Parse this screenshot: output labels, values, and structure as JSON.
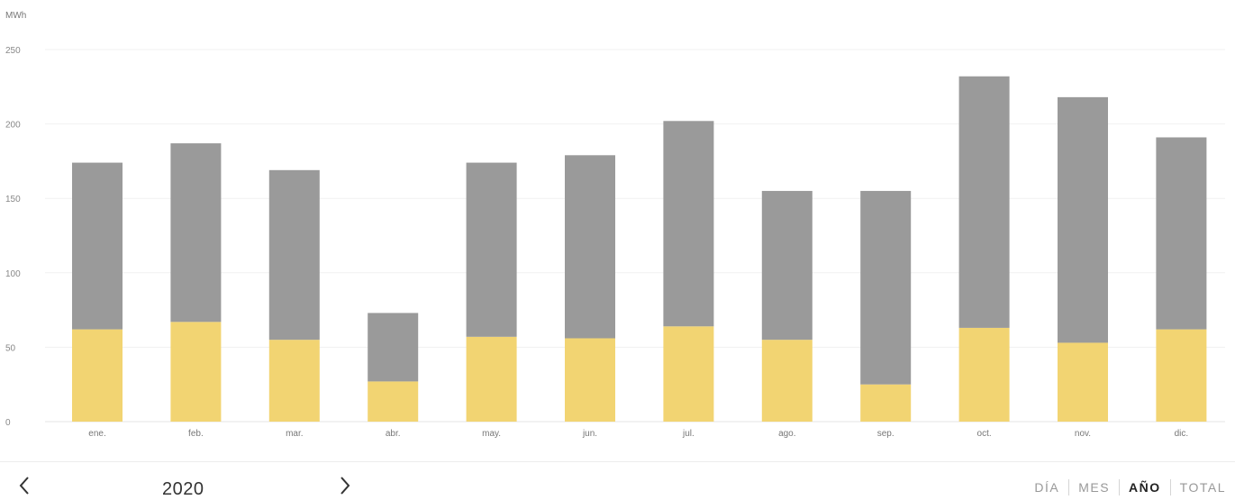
{
  "chart_data": {
    "type": "bar",
    "stacked": true,
    "unit_label": "MWh",
    "ylim": [
      0,
      250
    ],
    "yticks": [
      "0",
      "50",
      "100",
      "150",
      "200",
      "250"
    ],
    "grid": true,
    "categories": [
      "ene.",
      "feb.",
      "mar.",
      "abr.",
      "may.",
      "jun.",
      "jul.",
      "ago.",
      "sep.",
      "oct.",
      "nov.",
      "dic."
    ],
    "series": [
      {
        "color": "#f2d472",
        "values": [
          62,
          67,
          55,
          27,
          57,
          56,
          64,
          55,
          25,
          63,
          53,
          62
        ]
      },
      {
        "color": "#9a9a9a",
        "values": [
          112,
          120,
          114,
          46,
          117,
          123,
          138,
          100,
          130,
          169,
          165,
          129
        ]
      }
    ]
  },
  "footer": {
    "year": "2020",
    "prev_icon": "chevron-left-icon",
    "next_icon": "chevron-right-icon",
    "tabs": [
      {
        "label": "DÍA",
        "active": false
      },
      {
        "label": "MES",
        "active": false
      },
      {
        "label": "AÑO",
        "active": true
      },
      {
        "label": "TOTAL",
        "active": false
      }
    ]
  }
}
